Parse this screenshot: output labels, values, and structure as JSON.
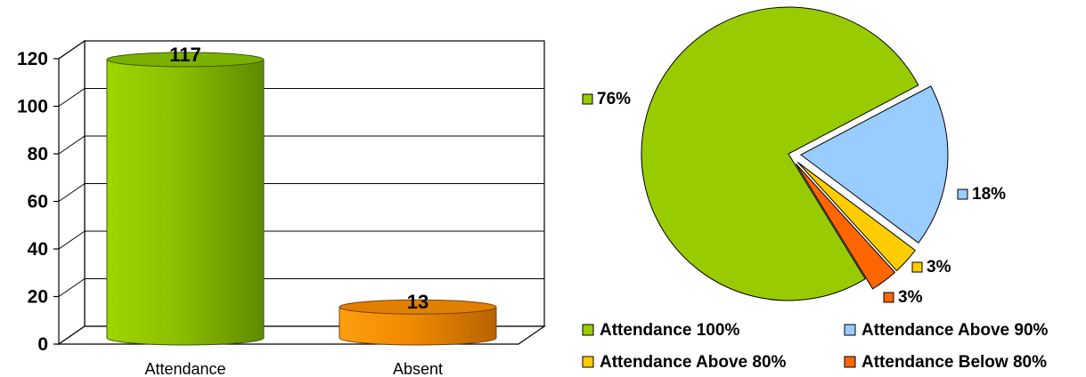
{
  "chart_data": [
    {
      "type": "bar",
      "style": "3d-cylinder",
      "categories": [
        "Attendance",
        "Absent"
      ],
      "values": [
        117,
        13
      ],
      "data_labels": [
        "117",
        "13"
      ],
      "ylim": [
        0,
        120
      ],
      "yticks": [
        "0",
        "20",
        "40",
        "60",
        "80",
        "100",
        "120"
      ],
      "grid": true,
      "colors": [
        "#8fc400",
        "#f09000"
      ]
    },
    {
      "type": "pie",
      "slices": [
        {
          "name": "Attendance 100%",
          "value": 76,
          "label": "76%",
          "color": "#99cc00",
          "exploded": false
        },
        {
          "name": "Attendance Above 90%",
          "value": 18,
          "label": "18%",
          "color": "#99ccff",
          "exploded": true
        },
        {
          "name": "Attendance Above 80%",
          "value": 3,
          "label": "3%",
          "color": "#ffcc00",
          "exploded": true
        },
        {
          "name": "Attendance Below 80%",
          "value": 3,
          "label": "3%",
          "color": "#ff6600",
          "exploded": true
        }
      ],
      "legend_position": "bottom"
    }
  ]
}
